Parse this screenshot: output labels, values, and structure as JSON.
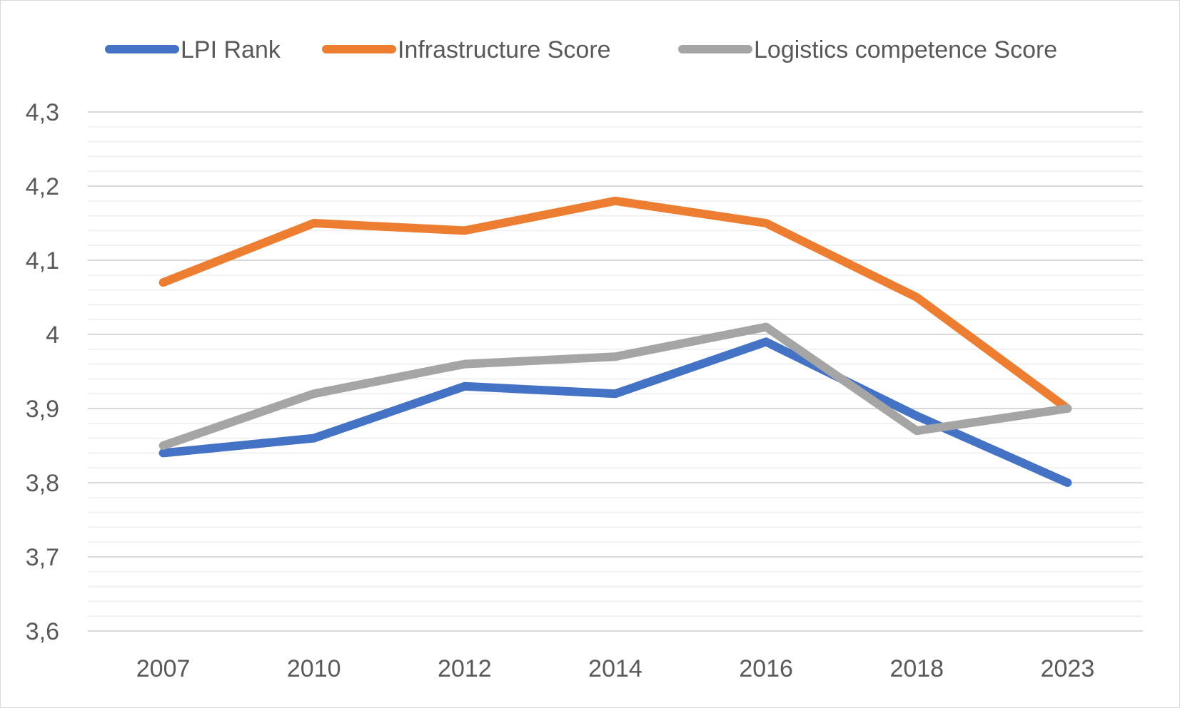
{
  "chart_data": {
    "type": "line",
    "title": "",
    "xlabel": "",
    "ylabel": "",
    "categories": [
      "2007",
      "2010",
      "2012",
      "2014",
      "2016",
      "2018",
      "2023"
    ],
    "series": [
      {
        "name": "LPI Rank",
        "color": "#4472C4",
        "values": [
          3.84,
          3.86,
          3.93,
          3.92,
          3.99,
          3.89,
          3.8
        ]
      },
      {
        "name": "Infrastructure Score",
        "color": "#ED7D31",
        "values": [
          4.07,
          4.15,
          4.14,
          4.18,
          4.15,
          4.05,
          3.9
        ]
      },
      {
        "name": "Logistics competence Score",
        "color": "#A5A5A5",
        "values": [
          3.85,
          3.92,
          3.96,
          3.97,
          4.01,
          3.87,
          3.9
        ]
      }
    ],
    "ylim": [
      3.6,
      4.3
    ],
    "y_major_step": 0.1,
    "y_tick_labels": [
      "3,6",
      "3,7",
      "3,8",
      "3,9",
      "4",
      "4,1",
      "4,2",
      "4,3"
    ],
    "grid": "on",
    "legend_position": "top"
  }
}
